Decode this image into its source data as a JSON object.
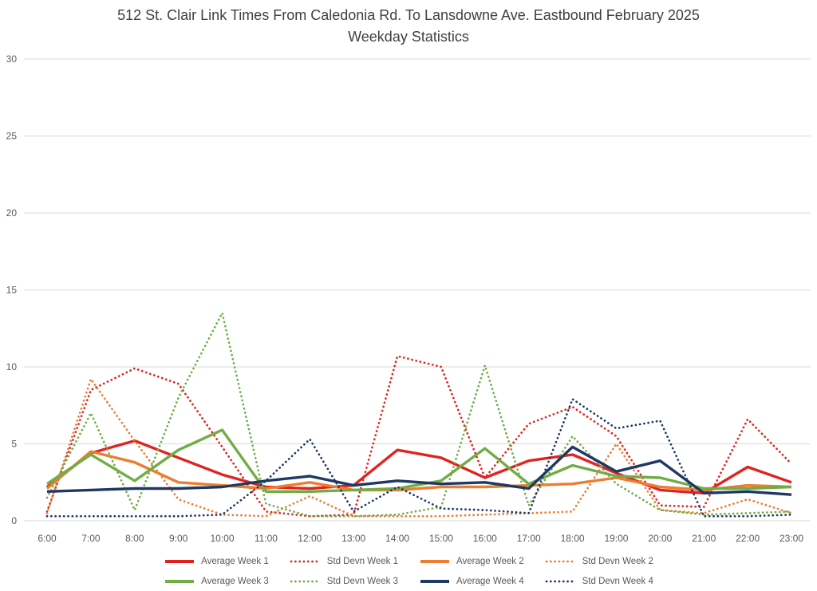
{
  "chart_data": {
    "type": "line",
    "title_line1": "512 St. Clair Link Times From Caledonia Rd. To Lansdowne Ave. Eastbound February 2025",
    "title_line2": "Weekday Statistics",
    "xlabel": "",
    "ylabel": "",
    "ylim": [
      0,
      30
    ],
    "y_ticks": [
      0,
      5,
      10,
      15,
      20,
      25,
      30
    ],
    "grid": "horizontal",
    "legend_position": "bottom",
    "x_categories": [
      "6:00",
      "7:00",
      "8:00",
      "9:00",
      "10:00",
      "11:00",
      "12:00",
      "13:00",
      "14:00",
      "15:00",
      "16:00",
      "17:00",
      "18:00",
      "19:00",
      "20:00",
      "21:00",
      "22:00",
      "23:00"
    ],
    "series": [
      {
        "name": "Average Week 1",
        "color": "#E02320",
        "line": "solid",
        "values": [
          2.2,
          4.4,
          5.2,
          4.1,
          3.0,
          2.2,
          2.1,
          2.3,
          4.6,
          4.1,
          2.8,
          3.9,
          4.3,
          3.1,
          2.0,
          1.8,
          3.5,
          2.5
        ]
      },
      {
        "name": "Std Devn Week 1",
        "color": "#E02320",
        "line": "dotted",
        "values": [
          0.6,
          8.5,
          9.9,
          8.9,
          4.8,
          0.6,
          0.3,
          0.4,
          10.7,
          10.0,
          2.8,
          6.3,
          7.4,
          5.5,
          1.0,
          0.9,
          6.6,
          3.7
        ]
      },
      {
        "name": "Average Week 2",
        "color": "#ED7D31",
        "line": "solid",
        "values": [
          2.1,
          4.5,
          3.8,
          2.5,
          2.3,
          2.1,
          2.5,
          2.0,
          2.0,
          2.2,
          2.2,
          2.3,
          2.4,
          2.8,
          2.2,
          2.0,
          2.3,
          2.2
        ]
      },
      {
        "name": "Std Devn Week 2",
        "color": "#ED7D31",
        "line": "dotted",
        "values": [
          0.5,
          9.2,
          5.2,
          1.4,
          0.4,
          0.3,
          1.6,
          0.3,
          0.3,
          0.3,
          0.4,
          0.5,
          0.6,
          5.0,
          0.7,
          0.5,
          1.4,
          0.5
        ]
      },
      {
        "name": "Average Week 3",
        "color": "#70AD47",
        "line": "solid",
        "values": [
          2.4,
          4.3,
          2.6,
          4.6,
          5.9,
          1.9,
          1.9,
          2.0,
          2.1,
          2.6,
          4.7,
          2.4,
          3.6,
          2.9,
          2.8,
          2.1,
          2.1,
          2.2
        ]
      },
      {
        "name": "Std Devn Week 3",
        "color": "#70AD47",
        "line": "dotted",
        "values": [
          1.5,
          7.0,
          0.7,
          8.0,
          13.5,
          1.1,
          0.3,
          0.3,
          0.4,
          0.9,
          10.1,
          1.0,
          5.5,
          2.4,
          0.7,
          0.4,
          0.5,
          0.6
        ]
      },
      {
        "name": "Average Week 4",
        "color": "#1F3864",
        "line": "solid",
        "values": [
          1.9,
          2.0,
          2.1,
          2.1,
          2.2,
          2.6,
          2.9,
          2.3,
          2.6,
          2.4,
          2.5,
          2.1,
          4.8,
          3.2,
          3.9,
          1.8,
          1.9,
          1.7
        ]
      },
      {
        "name": "Std Devn Week 4",
        "color": "#1F3864",
        "line": "dotted",
        "values": [
          0.3,
          0.3,
          0.3,
          0.3,
          0.4,
          2.6,
          5.3,
          0.6,
          2.2,
          0.8,
          0.7,
          0.5,
          7.9,
          6.0,
          6.5,
          0.3,
          0.3,
          0.4
        ]
      }
    ],
    "legend_rows": [
      [
        0,
        1,
        2,
        3
      ],
      [
        4,
        5,
        6,
        7
      ]
    ]
  },
  "colors": {
    "background": "#FFFFFF",
    "gridline": "#D9D9D9",
    "axis_text": "#595959",
    "title_text": "#404040",
    "legend_text": "#595959"
  }
}
